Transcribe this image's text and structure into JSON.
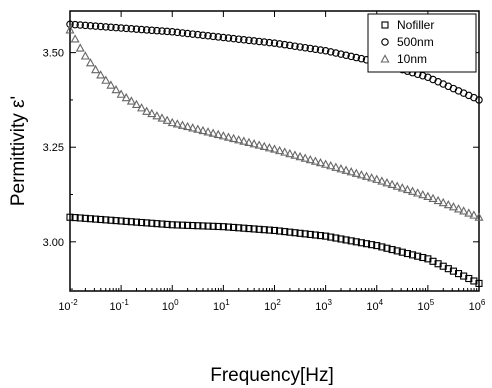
{
  "chart_data": {
    "type": "scatter",
    "xlabel": "Frequency[Hz]",
    "ylabel": "Permittivity ε'",
    "xscale": "log",
    "xlim": [
      0.01,
      1000000
    ],
    "ylim": [
      2.87,
      3.61
    ],
    "xticks": [
      {
        "value": 0.01,
        "base": "10",
        "exp": "-2"
      },
      {
        "value": 0.1,
        "base": "10",
        "exp": "-1"
      },
      {
        "value": 1,
        "base": "10",
        "exp": "0"
      },
      {
        "value": 10,
        "base": "10",
        "exp": "1"
      },
      {
        "value": 100,
        "base": "10",
        "exp": "2"
      },
      {
        "value": 1000,
        "base": "10",
        "exp": "3"
      },
      {
        "value": 10000,
        "base": "10",
        "exp": "4"
      },
      {
        "value": 100000,
        "base": "10",
        "exp": "5"
      },
      {
        "value": 1000000,
        "base": "10",
        "exp": "6"
      }
    ],
    "yticks": [
      {
        "value": 3.0,
        "label": "3.00"
      },
      {
        "value": 3.25,
        "label": "3.25"
      },
      {
        "value": 3.5,
        "label": "3.50"
      }
    ],
    "legend_position": "top-right",
    "series": [
      {
        "name": "Nofiller",
        "marker": "square",
        "anchors_x": [
          0.01,
          0.1,
          1,
          10,
          100,
          1000,
          10000,
          100000,
          1000000
        ],
        "anchors_y": [
          3.065,
          3.055,
          3.045,
          3.04,
          3.03,
          3.015,
          2.99,
          2.955,
          2.89
        ]
      },
      {
        "name": "500nm",
        "marker": "circle",
        "anchors_x": [
          0.01,
          0.1,
          1,
          10,
          100,
          1000,
          10000,
          100000,
          1000000
        ],
        "anchors_y": [
          3.575,
          3.565,
          3.555,
          3.54,
          3.525,
          3.505,
          3.475,
          3.435,
          3.375
        ]
      },
      {
        "name": "10nm",
        "marker": "triangle",
        "anchors_x": [
          0.01,
          0.0178,
          0.0316,
          0.0562,
          0.1,
          0.316,
          1,
          10,
          100,
          1000,
          10000,
          100000,
          1000000
        ],
        "anchors_y": [
          3.56,
          3.5,
          3.455,
          3.42,
          3.39,
          3.345,
          3.315,
          3.28,
          3.245,
          3.205,
          3.165,
          3.12,
          3.065
        ]
      }
    ]
  }
}
